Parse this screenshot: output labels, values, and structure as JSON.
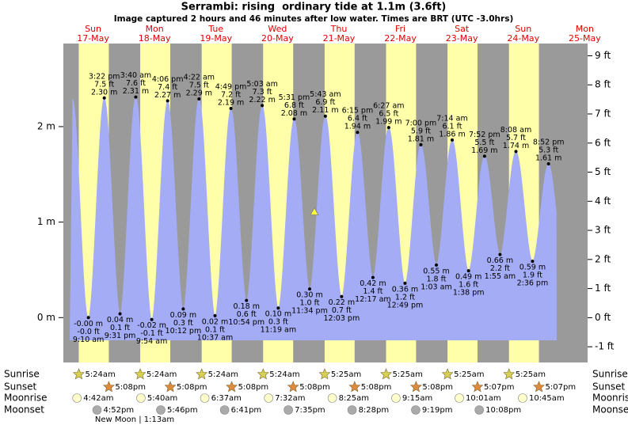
{
  "chart_data": {
    "type": "tide",
    "title": "Serrambi: rising  ordinary tide at 1.1m (3.6ft)",
    "subtitle": "Image captured 2 hours and 46 minutes after low water. Times are BRT (UTC -3.0hrs)",
    "current_level": 1.1,
    "water_color": "#a3acf5",
    "day_color": "#ffffaa",
    "night_color": "#9a9a9a",
    "days": [
      {
        "name": "Sun",
        "date": "17-May"
      },
      {
        "name": "Mon",
        "date": "18-May"
      },
      {
        "name": "Tue",
        "date": "19-May"
      },
      {
        "name": "Wed",
        "date": "20-May"
      },
      {
        "name": "Thu",
        "date": "21-May"
      },
      {
        "name": "Fri",
        "date": "22-May"
      },
      {
        "name": "Sat",
        "date": "23-May"
      },
      {
        "name": "Sun",
        "date": "24-May"
      },
      {
        "name": "Mon",
        "date": "25-May"
      }
    ],
    "ylim": [
      -0.47,
      2.87
    ],
    "yticks": [
      {
        "value": 0,
        "label": "0 m"
      },
      {
        "value": 1,
        "label": "1 m"
      },
      {
        "value": 2,
        "label": "2 m"
      }
    ],
    "y2lim": [
      -1.54,
      9.42
    ],
    "y2ticks": [
      {
        "value": -1,
        "label": "-1 ft"
      },
      {
        "value": 0,
        "label": "0 ft"
      },
      {
        "value": 1,
        "label": "1 ft"
      },
      {
        "value": 2,
        "label": "2 ft"
      },
      {
        "value": 3,
        "label": "3 ft"
      },
      {
        "value": 4,
        "label": "4 ft"
      },
      {
        "value": 5,
        "label": "5 ft"
      },
      {
        "value": 6,
        "label": "6 ft"
      },
      {
        "value": 7,
        "label": "7 ft"
      },
      {
        "value": 8,
        "label": "8 ft"
      },
      {
        "value": 9,
        "label": "9 ft"
      }
    ],
    "tides": [
      {
        "date": "17-May",
        "time": "9:10 am",
        "height_m": {
          "value": 0,
          "label": "-0.00 m"
        },
        "height_ft": {
          "value": 0,
          "label": "-0.0 ft"
        }
      },
      {
        "date": "17-May",
        "time": "3:22 pm",
        "height_m": {
          "value": 2.3,
          "label": "2.30 m"
        },
        "height_ft": {
          "value": 7.5,
          "label": "7.5 ft"
        }
      },
      {
        "date": "17-May",
        "time": "9:31 pm",
        "height_m": {
          "value": 0.04,
          "label": "0.04 m"
        },
        "height_ft": {
          "value": 0.1,
          "label": "0.1 ft"
        }
      },
      {
        "date": "18-May",
        "time": "3:40 am",
        "height_m": {
          "value": 2.31,
          "label": "2.31 m"
        },
        "height_ft": {
          "value": 7.6,
          "label": "7.6 ft"
        }
      },
      {
        "date": "18-May",
        "time": "9:54 am",
        "height_m": {
          "value": -0.02,
          "label": "-0.02 m"
        },
        "height_ft": {
          "value": -0.1,
          "label": "-0.1 ft"
        }
      },
      {
        "date": "18-May",
        "time": "4:06 pm",
        "height_m": {
          "value": 2.27,
          "label": "2.27 m"
        },
        "height_ft": {
          "value": 7.4,
          "label": "7.4 ft"
        }
      },
      {
        "date": "18-May",
        "time": "10:12 pm",
        "height_m": {
          "value": 0.09,
          "label": "0.09 m"
        },
        "height_ft": {
          "value": 0.3,
          "label": "0.3 ft"
        }
      },
      {
        "date": "19-May",
        "time": "4:22 am",
        "height_m": {
          "value": 2.29,
          "label": "2.29 m"
        },
        "height_ft": {
          "value": 7.5,
          "label": "7.5 ft"
        }
      },
      {
        "date": "19-May",
        "time": "10:37 am",
        "height_m": {
          "value": 0.02,
          "label": "0.02 m"
        },
        "height_ft": {
          "value": 0.1,
          "label": "0.1 ft"
        }
      },
      {
        "date": "19-May",
        "time": "4:49 pm",
        "height_m": {
          "value": 2.19,
          "label": "2.19 m"
        },
        "height_ft": {
          "value": 7.2,
          "label": "7.2 ft"
        }
      },
      {
        "date": "19-May",
        "time": "10:54 pm",
        "height_m": {
          "value": 0.18,
          "label": "0.18 m"
        },
        "height_ft": {
          "value": 0.6,
          "label": "0.6 ft"
        }
      },
      {
        "date": "20-May",
        "time": "5:03 am",
        "height_m": {
          "value": 2.22,
          "label": "2.22 m"
        },
        "height_ft": {
          "value": 7.3,
          "label": "7.3 ft"
        }
      },
      {
        "date": "20-May",
        "time": "11:19 am",
        "height_m": {
          "value": 0.1,
          "label": "0.10 m"
        },
        "height_ft": {
          "value": 0.3,
          "label": "0.3 ft"
        }
      },
      {
        "date": "20-May",
        "time": "5:31 pm",
        "height_m": {
          "value": 2.08,
          "label": "2.08 m"
        },
        "height_ft": {
          "value": 6.8,
          "label": "6.8 ft"
        }
      },
      {
        "date": "20-May",
        "time": "11:34 pm",
        "height_m": {
          "value": 0.3,
          "label": "0.30 m"
        },
        "height_ft": {
          "value": 1.0,
          "label": "1.0 ft"
        }
      },
      {
        "date": "21-May",
        "time": "5:43 am",
        "height_m": {
          "value": 2.11,
          "label": "2.11 m"
        },
        "height_ft": {
          "value": 6.9,
          "label": "6.9 ft"
        }
      },
      {
        "date": "21-May",
        "time": "12:03 pm",
        "height_m": {
          "value": 0.22,
          "label": "0.22 m"
        },
        "height_ft": {
          "value": 0.7,
          "label": "0.7 ft"
        }
      },
      {
        "date": "21-May",
        "time": "6:15 pm",
        "height_m": {
          "value": 1.94,
          "label": "1.94 m"
        },
        "height_ft": {
          "value": 6.4,
          "label": "6.4 ft"
        }
      },
      {
        "date": "22-May",
        "time": "12:17 am",
        "height_m": {
          "value": 0.42,
          "label": "0.42 m"
        },
        "height_ft": {
          "value": 1.4,
          "label": "1.4 ft"
        }
      },
      {
        "date": "22-May",
        "time": "6:27 am",
        "height_m": {
          "value": 1.99,
          "label": "1.99 m"
        },
        "height_ft": {
          "value": 6.5,
          "label": "6.5 ft"
        }
      },
      {
        "date": "22-May",
        "time": "12:49 pm",
        "height_m": {
          "value": 0.36,
          "label": "0.36 m"
        },
        "height_ft": {
          "value": 1.2,
          "label": "1.2 ft"
        }
      },
      {
        "date": "22-May",
        "time": "7:00 pm",
        "height_m": {
          "value": 1.81,
          "label": "1.81 m"
        },
        "height_ft": {
          "value": 5.9,
          "label": "5.9 ft"
        }
      },
      {
        "date": "23-May",
        "time": "1:03 am",
        "height_m": {
          "value": 0.55,
          "label": "0.55 m"
        },
        "height_ft": {
          "value": 1.8,
          "label": "1.8 ft"
        }
      },
      {
        "date": "23-May",
        "time": "7:14 am",
        "height_m": {
          "value": 1.86,
          "label": "1.86 m"
        },
        "height_ft": {
          "value": 6.1,
          "label": "6.1 ft"
        }
      },
      {
        "date": "23-May",
        "time": "1:38 pm",
        "height_m": {
          "value": 0.49,
          "label": "0.49 m"
        },
        "height_ft": {
          "value": 1.6,
          "label": "1.6 ft"
        }
      },
      {
        "date": "23-May",
        "time": "7:52 pm",
        "height_m": {
          "value": 1.69,
          "label": "1.69 m"
        },
        "height_ft": {
          "value": 5.5,
          "label": "5.5 ft"
        }
      },
      {
        "date": "24-May",
        "time": "1:55 am",
        "height_m": {
          "value": 0.66,
          "label": "0.66 m"
        },
        "height_ft": {
          "value": 2.2,
          "label": "2.2 ft"
        }
      },
      {
        "date": "24-May",
        "time": "8:08 am",
        "height_m": {
          "value": 1.74,
          "label": "1.74 m"
        },
        "height_ft": {
          "value": 5.7,
          "label": "5.7 ft"
        }
      },
      {
        "date": "24-May",
        "time": "2:36 pm",
        "height_m": {
          "value": 0.59,
          "label": "0.59 m"
        },
        "height_ft": {
          "value": 1.9,
          "label": "1.9 ft"
        }
      },
      {
        "date": "24-May",
        "time": "8:52 pm",
        "height_m": {
          "value": 1.61,
          "label": "1.61 m"
        },
        "height_ft": {
          "value": 5.3,
          "label": "5.3 ft"
        }
      }
    ],
    "rows": [
      {
        "name": "Sunrise",
        "times": [
          "5:24am",
          "5:24am",
          "5:24am",
          "5:24am",
          "5:25am",
          "5:25am",
          "5:25am",
          "5:25am"
        ]
      },
      {
        "name": "Sunset",
        "times": [
          "5:08pm",
          "5:08pm",
          "5:08pm",
          "5:08pm",
          "5:08pm",
          "5:08pm",
          "5:07pm",
          "5:07pm"
        ]
      },
      {
        "name": "Moonrise",
        "times": [
          "4:42am",
          "5:40am",
          "6:37am",
          "7:32am",
          "8:25am",
          "9:15am",
          "10:01am",
          "10:45am"
        ]
      },
      {
        "name": "Moonset",
        "times": [
          "4:52pm",
          "5:46pm",
          "6:41pm",
          "7:35pm",
          "8:28pm",
          "9:19pm",
          "10:08pm"
        ]
      }
    ],
    "moon_phase": "New Moon | 1:13am"
  }
}
